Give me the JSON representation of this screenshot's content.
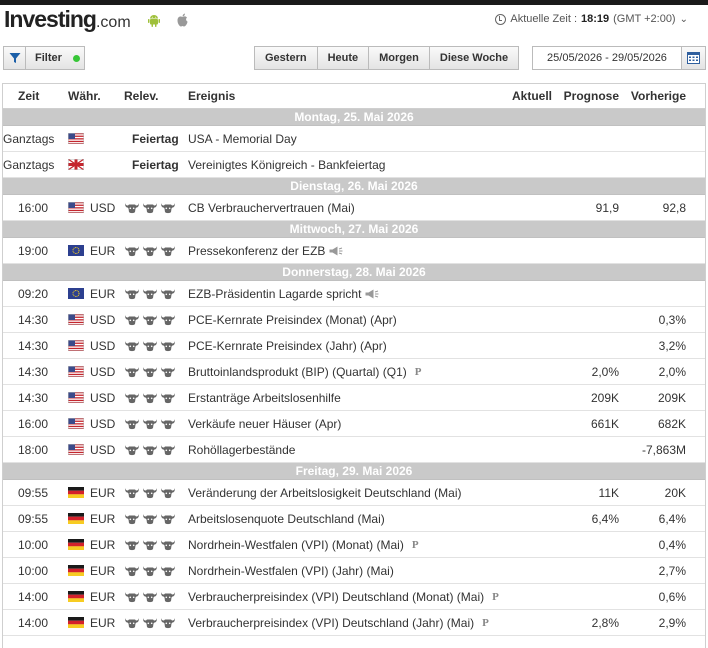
{
  "header": {
    "logo_main": "Investing",
    "logo_suffix": ".com",
    "time_label": "Aktuelle Zeit :",
    "time_value": "18:19",
    "timezone": "(GMT +2:00)",
    "timezone_caret": "⌄"
  },
  "toolbar": {
    "filter_label": "Filter",
    "day_buttons": [
      "Gestern",
      "Heute",
      "Morgen",
      "Diese Woche"
    ],
    "date_range": "25/05/2026 - 29/05/2026"
  },
  "table": {
    "columns": {
      "time": "Zeit",
      "currency": "Währ.",
      "relevance": "Relev.",
      "event": "Ereignis",
      "actual": "Aktuell",
      "forecast": "Prognose",
      "previous": "Vorherige"
    },
    "days": [
      {
        "label": "Montag, 25. Mai 2026",
        "events": [
          {
            "time": "Ganztags",
            "flag": "us-flag",
            "currency": "",
            "holiday": "Feiertag",
            "event": "USA - Memorial Day",
            "actual": "",
            "forecast": "",
            "previous": ""
          },
          {
            "time": "Ganztags",
            "flag": "uk-flag",
            "currency": "",
            "holiday": "Feiertag",
            "event": "Vereinigtes Königreich - Bankfeiertag",
            "actual": "",
            "forecast": "",
            "previous": ""
          }
        ]
      },
      {
        "label": "Dienstag, 26. Mai 2026",
        "events": [
          {
            "time": "16:00",
            "flag": "us-flag",
            "currency": "USD",
            "bulls": 3,
            "event": "CB Verbrauchervertrauen (Mai)",
            "actual": "",
            "forecast": "91,9",
            "previous": "92,8"
          }
        ]
      },
      {
        "label": "Mittwoch, 27. Mai 2026",
        "events": [
          {
            "time": "19:00",
            "flag": "eu-flag",
            "currency": "EUR",
            "bulls": 3,
            "event": "Pressekonferenz der EZB",
            "speech": true,
            "actual": "",
            "forecast": "",
            "previous": ""
          }
        ]
      },
      {
        "label": "Donnerstag, 28. Mai 2026",
        "events": [
          {
            "time": "09:20",
            "flag": "eu-flag",
            "currency": "EUR",
            "bulls": 3,
            "event": "EZB-Präsidentin Lagarde spricht",
            "speech": true,
            "actual": "",
            "forecast": "",
            "previous": ""
          },
          {
            "time": "14:30",
            "flag": "us-flag",
            "currency": "USD",
            "bulls": 3,
            "event": "PCE-Kernrate Preisindex (Monat) (Apr)",
            "actual": "",
            "forecast": "",
            "previous": "0,3%"
          },
          {
            "time": "14:30",
            "flag": "us-flag",
            "currency": "USD",
            "bulls": 3,
            "event": "PCE-Kernrate Preisindex (Jahr) (Apr)",
            "actual": "",
            "forecast": "",
            "previous": "3,2%"
          },
          {
            "time": "14:30",
            "flag": "us-flag",
            "currency": "USD",
            "bulls": 3,
            "event": "Bruttoinlandsprodukt (BIP) (Quartal) (Q1)",
            "prelim": "P",
            "actual": "",
            "forecast": "2,0%",
            "previous": "2,0%"
          },
          {
            "time": "14:30",
            "flag": "us-flag",
            "currency": "USD",
            "bulls": 3,
            "event": "Erstanträge Arbeitslosenhilfe",
            "actual": "",
            "forecast": "209K",
            "previous": "209K"
          },
          {
            "time": "16:00",
            "flag": "us-flag",
            "currency": "USD",
            "bulls": 3,
            "event": "Verkäufe neuer Häuser (Apr)",
            "actual": "",
            "forecast": "661K",
            "previous": "682K"
          },
          {
            "time": "18:00",
            "flag": "us-flag",
            "currency": "USD",
            "bulls": 3,
            "event": "Rohöllagerbestände",
            "actual": "",
            "forecast": "",
            "previous": "-7,863M"
          }
        ]
      },
      {
        "label": "Freitag, 29. Mai 2026",
        "events": [
          {
            "time": "09:55",
            "flag": "de-flag",
            "currency": "EUR",
            "bulls": 3,
            "event": "Veränderung der Arbeitslosigkeit Deutschland (Mai)",
            "actual": "",
            "forecast": "11K",
            "previous": "20K"
          },
          {
            "time": "09:55",
            "flag": "de-flag",
            "currency": "EUR",
            "bulls": 3,
            "event": "Arbeitslosenquote Deutschland (Mai)",
            "actual": "",
            "forecast": "6,4%",
            "previous": "6,4%"
          },
          {
            "time": "10:00",
            "flag": "de-flag",
            "currency": "EUR",
            "bulls": 3,
            "event": "Nordrhein-Westfalen (VPI) (Monat) (Mai)",
            "prelim": "P",
            "actual": "",
            "forecast": "",
            "previous": "0,4%"
          },
          {
            "time": "10:00",
            "flag": "de-flag",
            "currency": "EUR",
            "bulls": 3,
            "event": "Nordrhein-Westfalen (VPI) (Jahr) (Mai)",
            "actual": "",
            "forecast": "",
            "previous": "2,7%"
          },
          {
            "time": "14:00",
            "flag": "de-flag",
            "currency": "EUR",
            "bulls": 3,
            "event": "Verbraucherpreisindex (VPI) Deutschland (Monat) (Mai)",
            "prelim": "P",
            "actual": "",
            "forecast": "",
            "previous": "0,6%"
          },
          {
            "time": "14:00",
            "flag": "de-flag",
            "currency": "EUR",
            "bulls": 3,
            "event": "Verbraucherpreisindex (VPI) Deutschland (Jahr) (Mai)",
            "prelim": "P",
            "actual": "",
            "forecast": "2,8%",
            "previous": "2,9%"
          }
        ]
      }
    ]
  },
  "icons": {
    "android": "android-icon",
    "apple": "apple-icon",
    "clock": "clock-icon",
    "filter": "filter-icon",
    "calendar": "calendar-icon",
    "relevance": "bull-icon",
    "speech": "speaker-icon"
  },
  "colors": {
    "day_header_bg": "#c9c9c9",
    "filter_active": "#37c637",
    "filter_icon": "#1b5fa8"
  }
}
